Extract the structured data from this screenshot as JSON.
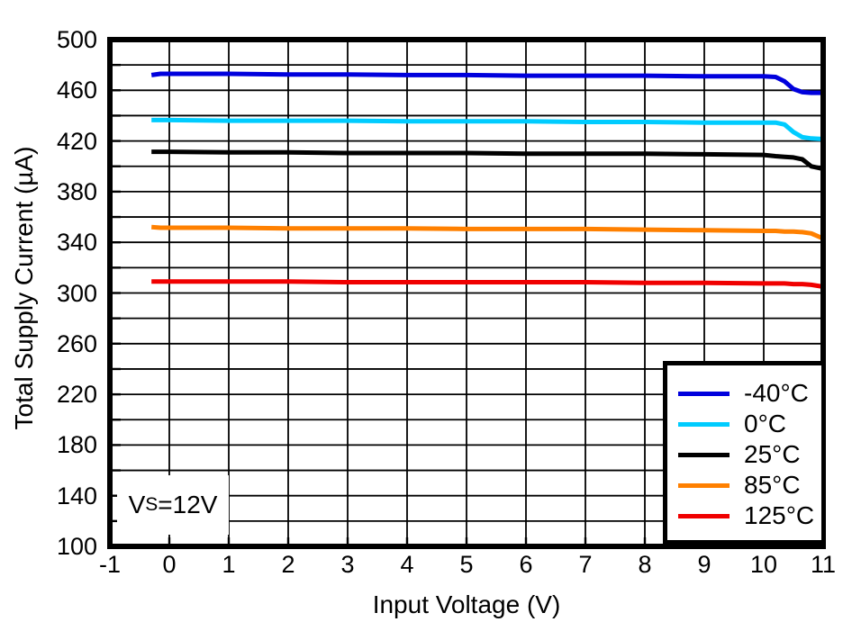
{
  "chart_data": {
    "type": "line",
    "title": "",
    "xlabel": "Input Voltage (V)",
    "ylabel": "Total Supply Current (µA)",
    "xlim": [
      -1,
      11
    ],
    "ylim": [
      100,
      500
    ],
    "xticks": [
      -1,
      0,
      1,
      2,
      3,
      4,
      5,
      6,
      7,
      8,
      9,
      10,
      11
    ],
    "yticks": [
      500,
      460,
      420,
      380,
      340,
      300,
      260,
      220,
      180,
      140,
      100
    ],
    "y_minor_step": 20,
    "x_grid_step": 1,
    "grid": true,
    "legend_position": "bottom-right",
    "x": [
      -0.3,
      -0.15,
      0,
      1,
      2,
      3,
      4,
      5,
      6,
      7,
      8,
      9,
      10,
      10.2,
      10.35,
      10.5,
      10.65,
      10.8,
      11
    ],
    "series": [
      {
        "name": "-40°C",
        "color": "#0000DD",
        "values": [
          472,
          473,
          473,
          473,
          472.5,
          472.5,
          472,
          472,
          471.5,
          471.5,
          471.5,
          471,
          471,
          470.5,
          467,
          461,
          458.5,
          458,
          458
        ]
      },
      {
        "name": "0°C",
        "color": "#00CCFF",
        "values": [
          436.5,
          436.5,
          436.5,
          436,
          436,
          436,
          435.5,
          435.5,
          435.5,
          435,
          435,
          434.5,
          434.5,
          434.5,
          433,
          427,
          423,
          422,
          421.5
        ]
      },
      {
        "name": "25°C",
        "color": "#000000",
        "values": [
          411.5,
          411.5,
          411.5,
          411,
          411,
          410.5,
          410.5,
          410.5,
          410,
          410,
          410,
          409.5,
          409,
          408,
          407.5,
          407,
          405.5,
          400,
          398
        ]
      },
      {
        "name": "85°C",
        "color": "#FF8000",
        "values": [
          352,
          351.5,
          351.5,
          351.5,
          351,
          351,
          351,
          350.5,
          350.5,
          350.5,
          350,
          349.5,
          349,
          349,
          348.5,
          348.5,
          348,
          347,
          343
        ]
      },
      {
        "name": "125°C",
        "color": "#F00000",
        "values": [
          309,
          309,
          309,
          309,
          309,
          308.5,
          308.5,
          308.5,
          308.5,
          308.5,
          308,
          308,
          307.5,
          307.5,
          307.5,
          307,
          307,
          306.5,
          305
        ]
      }
    ]
  },
  "annotation": {
    "prefix": "V",
    "sub": "S",
    "suffix": "=12V"
  },
  "style_colors": {
    "axis": "#000000",
    "grid": "#000000",
    "background": "#FFFFFF"
  }
}
